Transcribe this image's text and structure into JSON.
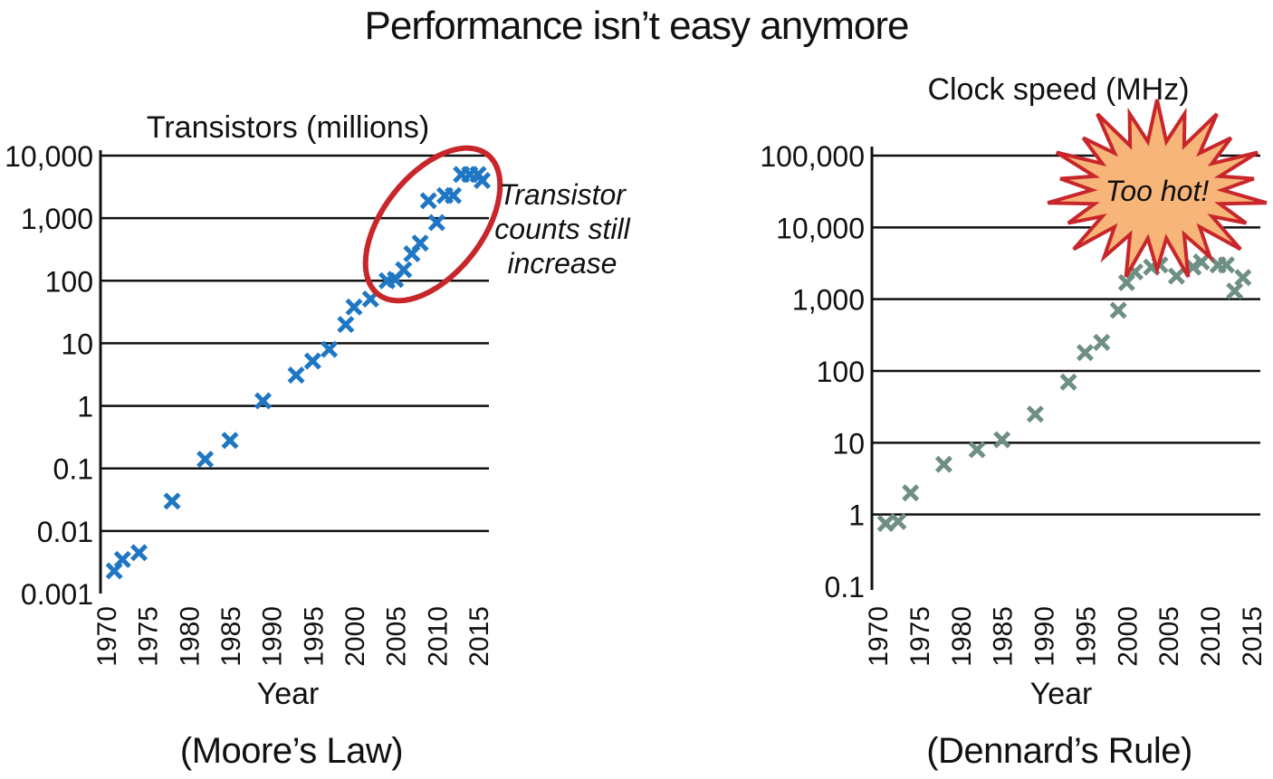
{
  "title": "Performance isn’t easy anymore",
  "captions": {
    "left": "(Moore’s Law)",
    "right": "(Dennard’s Rule)"
  },
  "chart_data": [
    {
      "type": "scatter",
      "title": "Transistors (millions)",
      "xlabel": "Year",
      "ylabel": "",
      "yscale": "log",
      "ylim": [
        0.001,
        10000
      ],
      "xlim": [
        1970,
        2015
      ],
      "yticks": [
        "0.001",
        "0.01",
        "0.1",
        "1",
        "10",
        "100",
        "1,000",
        "10,000"
      ],
      "xticks": [
        "1970",
        "1975",
        "1980",
        "1985",
        "1990",
        "1995",
        "2000",
        "2005",
        "2010",
        "2015"
      ],
      "grid": "horizontal",
      "marker": "x",
      "color": "#1f77c4",
      "annotation": {
        "text_lines": [
          "Transistor",
          "counts still",
          "increase"
        ],
        "shape": "red ellipse",
        "color": "#c8262a"
      },
      "x": [
        1971,
        1972,
        1974,
        1978,
        1982,
        1985,
        1989,
        1993,
        1995,
        1997,
        1999,
        2000,
        2002,
        2004,
        2005,
        2006,
        2007,
        2008,
        2009,
        2010,
        2011,
        2012,
        2013,
        2014,
        2015,
        2015.5
      ],
      "y": [
        0.0023,
        0.0035,
        0.0045,
        0.03,
        0.14,
        0.28,
        1.2,
        3.1,
        5.2,
        8,
        20,
        38,
        51,
        100,
        105,
        150,
        270,
        400,
        1900,
        850,
        2300,
        2300,
        5000,
        5000,
        5000,
        4000
      ]
    },
    {
      "type": "scatter",
      "title": "Clock speed (MHz)",
      "xlabel": "Year",
      "ylabel": "",
      "yscale": "log",
      "ylim": [
        0.1,
        100000
      ],
      "xlim": [
        1970,
        2015
      ],
      "yticks": [
        "0.1",
        "1",
        "10",
        "100",
        "1,000",
        "10,000",
        "100,000"
      ],
      "xticks": [
        "1970",
        "1975",
        "1980",
        "1985",
        "1990",
        "1995",
        "2000",
        "2005",
        "2010",
        "2015"
      ],
      "grid": "horizontal",
      "marker": "x",
      "color": "#6e8f83",
      "annotation": {
        "text": "Too hot!",
        "shape": "starburst",
        "fill": "#f7b57a",
        "stroke": "#c8262a"
      },
      "x": [
        1971,
        1972.5,
        1974,
        1978,
        1982,
        1985,
        1989,
        1993,
        1995,
        1997,
        1999,
        2000,
        2001,
        2003,
        2004,
        2006,
        2008,
        2009,
        2011,
        2012,
        2013,
        2014
      ],
      "y": [
        0.75,
        0.8,
        2,
        5,
        8,
        11,
        25,
        70,
        180,
        250,
        700,
        1700,
        2400,
        2800,
        3000,
        2100,
        2800,
        3300,
        3000,
        3000,
        1300,
        2000
      ]
    }
  ]
}
